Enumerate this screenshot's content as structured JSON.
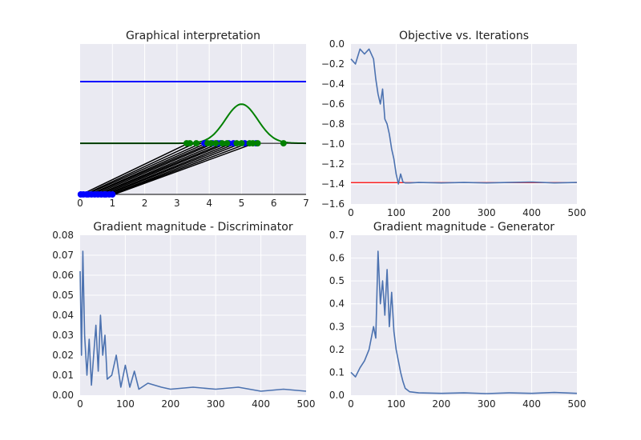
{
  "style": {
    "axes_bg": "#EAEAF2",
    "grid": "#ffffff",
    "series_color": "#4C72B0",
    "blue": "#0000ff",
    "green": "#008000",
    "black": "#000000",
    "red": "#ff0000"
  },
  "chart_data": [
    {
      "id": "graphical",
      "type": "line",
      "title": "Graphical interpretation",
      "xlabel": "",
      "ylabel": "",
      "xlim": [
        0,
        7
      ],
      "ylim": [
        0,
        1
      ],
      "xticks": [
        0,
        1,
        2,
        3,
        4,
        5,
        6,
        7
      ],
      "yticks": [],
      "grid": true,
      "series": [
        {
          "kind": "hline",
          "color": "blue",
          "y": 0.75
        },
        {
          "kind": "gaussian",
          "color": "green",
          "mu": 5,
          "sigma": 0.5,
          "base": 0.34,
          "amp": 0.26
        },
        {
          "kind": "hline",
          "color": "black",
          "y": 0.34
        },
        {
          "kind": "hline",
          "color": "black",
          "y": 0.0
        }
      ],
      "mapping_lines": [
        [
          0.05,
          3.35
        ],
        [
          0.15,
          3.55
        ],
        [
          0.2,
          3.75
        ],
        [
          0.3,
          3.9
        ],
        [
          0.35,
          4.05
        ],
        [
          0.45,
          4.15
        ],
        [
          0.55,
          4.3
        ],
        [
          0.6,
          4.45
        ],
        [
          0.7,
          4.55
        ],
        [
          0.8,
          4.7
        ],
        [
          0.85,
          4.85
        ],
        [
          0.95,
          5.0
        ],
        [
          1.0,
          5.2
        ],
        [
          1.05,
          5.4
        ]
      ],
      "points_blue_top": [
        3.85,
        4.1,
        4.25,
        4.35,
        4.6,
        4.75,
        5.1,
        5.45
      ],
      "points_green_top": [
        3.3,
        3.4,
        3.6,
        3.95,
        4.05,
        4.2,
        4.4,
        4.55,
        4.85,
        5.0,
        5.25,
        5.35,
        5.5,
        6.3
      ],
      "points_blue_bottom": [
        0.02,
        0.1,
        0.2,
        0.25,
        0.35,
        0.45,
        0.55,
        0.65,
        0.75,
        0.8,
        0.9,
        1.0
      ]
    },
    {
      "id": "objective",
      "type": "line",
      "title": "Objective vs. Iterations",
      "xlabel": "",
      "ylabel": "",
      "xlim": [
        0,
        500
      ],
      "ylim": [
        -1.6,
        0.0
      ],
      "xticks": [
        0,
        100,
        200,
        300,
        400,
        500
      ],
      "yticks": [
        0.0,
        -0.2,
        -0.4,
        -0.6,
        -0.8,
        -1.0,
        -1.2,
        -1.4,
        -1.6
      ],
      "ytick_labels": [
        "0.0",
        "−0.2",
        "−0.4",
        "−0.6",
        "−0.8",
        "−1.0",
        "−1.2",
        "−1.4",
        "−1.6"
      ],
      "grid": true,
      "reference_line": {
        "y": -1.386,
        "color": "red"
      },
      "series": [
        {
          "color": "series_color",
          "x": [
            0,
            10,
            20,
            30,
            40,
            50,
            55,
            60,
            65,
            70,
            75,
            80,
            85,
            90,
            95,
            100,
            105,
            110,
            115,
            120,
            130,
            150,
            200,
            250,
            300,
            350,
            400,
            450,
            500
          ],
          "y": [
            -0.15,
            -0.2,
            -0.05,
            -0.1,
            -0.05,
            -0.15,
            -0.35,
            -0.5,
            -0.6,
            -0.45,
            -0.75,
            -0.8,
            -0.9,
            -1.05,
            -1.15,
            -1.3,
            -1.4,
            -1.3,
            -1.38,
            -1.39,
            -1.39,
            -1.385,
            -1.39,
            -1.385,
            -1.39,
            -1.385,
            -1.38,
            -1.39,
            -1.385
          ]
        }
      ]
    },
    {
      "id": "grad_disc",
      "type": "line",
      "title": "Gradient magnitude - Discriminator",
      "xlabel": "",
      "ylabel": "",
      "xlim": [
        0,
        500
      ],
      "ylim": [
        0,
        0.08
      ],
      "xticks": [
        0,
        100,
        200,
        300,
        400,
        500
      ],
      "yticks": [
        0.0,
        0.01,
        0.02,
        0.03,
        0.04,
        0.05,
        0.06,
        0.07,
        0.08
      ],
      "ytick_labels": [
        "0.00",
        "0.01",
        "0.02",
        "0.03",
        "0.04",
        "0.05",
        "0.06",
        "0.07",
        "0.08"
      ],
      "grid": true,
      "series": [
        {
          "color": "series_color",
          "x": [
            0,
            3,
            6,
            10,
            15,
            20,
            25,
            30,
            35,
            40,
            45,
            50,
            55,
            60,
            70,
            80,
            90,
            100,
            110,
            120,
            130,
            150,
            180,
            200,
            250,
            300,
            350,
            400,
            450,
            500
          ],
          "y": [
            0.062,
            0.02,
            0.072,
            0.03,
            0.01,
            0.028,
            0.005,
            0.02,
            0.035,
            0.012,
            0.04,
            0.02,
            0.03,
            0.008,
            0.01,
            0.02,
            0.004,
            0.015,
            0.004,
            0.012,
            0.003,
            0.006,
            0.004,
            0.003,
            0.004,
            0.003,
            0.004,
            0.002,
            0.003,
            0.002
          ]
        }
      ]
    },
    {
      "id": "grad_gen",
      "type": "line",
      "title": "Gradient magnitude - Generator",
      "xlabel": "",
      "ylabel": "",
      "xlim": [
        0,
        500
      ],
      "ylim": [
        0,
        0.7
      ],
      "xticks": [
        0,
        100,
        200,
        300,
        400,
        500
      ],
      "yticks": [
        0.0,
        0.1,
        0.2,
        0.3,
        0.4,
        0.5,
        0.6,
        0.7
      ],
      "ytick_labels": [
        "0.0",
        "0.1",
        "0.2",
        "0.3",
        "0.4",
        "0.5",
        "0.6",
        "0.7"
      ],
      "grid": true,
      "series": [
        {
          "color": "series_color",
          "x": [
            0,
            10,
            20,
            30,
            40,
            50,
            55,
            60,
            65,
            70,
            75,
            80,
            85,
            90,
            95,
            100,
            105,
            110,
            115,
            120,
            130,
            150,
            200,
            250,
            300,
            350,
            400,
            450,
            500
          ],
          "y": [
            0.1,
            0.08,
            0.12,
            0.15,
            0.2,
            0.3,
            0.25,
            0.63,
            0.4,
            0.5,
            0.35,
            0.55,
            0.3,
            0.45,
            0.28,
            0.2,
            0.15,
            0.1,
            0.06,
            0.03,
            0.015,
            0.01,
            0.008,
            0.01,
            0.007,
            0.01,
            0.008,
            0.012,
            0.008
          ]
        }
      ]
    }
  ]
}
